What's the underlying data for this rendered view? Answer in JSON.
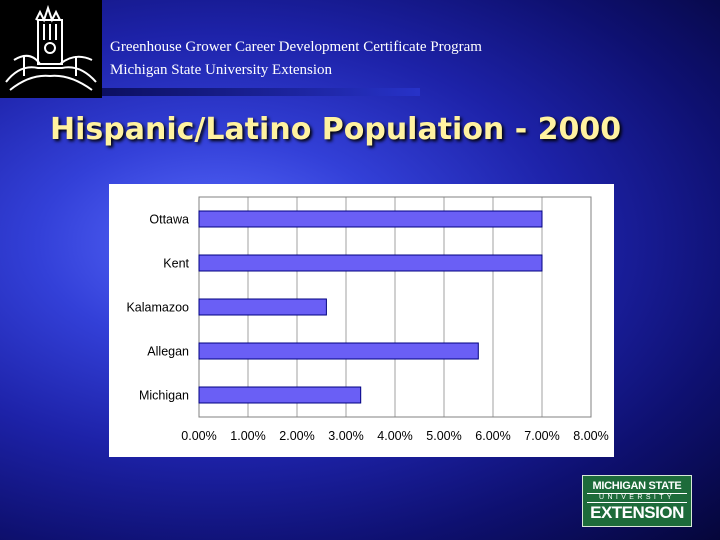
{
  "header": {
    "line1": "Greenhouse Grower Career Development Certificate Program",
    "line2": "Michigan State University Extension"
  },
  "slide_title": "Hispanic/Latino Population - 2000",
  "logo": {
    "line1": "MICHIGAN STATE",
    "line2": "UNIVERSITY",
    "line3": "EXTENSION",
    "color": "#1d6b3a"
  },
  "colors": {
    "bar_fill": "#6a5ff5",
    "bar_stroke": "#000080",
    "title": "#fff2a0"
  },
  "chart_data": {
    "type": "bar",
    "orientation": "horizontal",
    "categories": [
      "Ottawa",
      "Kent",
      "Kalamazoo",
      "Allegan",
      "Michigan"
    ],
    "values": [
      0.07,
      0.07,
      0.026,
      0.057,
      0.033
    ],
    "xlim": [
      0,
      0.08
    ],
    "ticks": [
      "0.00%",
      "1.00%",
      "2.00%",
      "3.00%",
      "4.00%",
      "5.00%",
      "6.00%",
      "7.00%",
      "8.00%"
    ],
    "grid": true,
    "legend": false
  }
}
